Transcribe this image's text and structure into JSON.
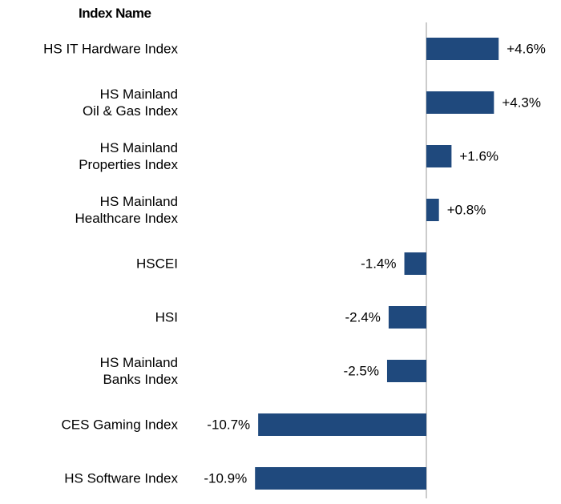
{
  "chart_data": {
    "type": "bar",
    "orientation": "horizontal",
    "y_label": "Index Name",
    "categories": [
      "HS IT Hardware Index",
      "HS Mainland\nOil & Gas Index",
      "HS Mainland\nProperties Index",
      "HS Mainland\nHealthcare Index",
      "HSCEI",
      "HSI",
      "HS Mainland\nBanks Index",
      "CES Gaming Index",
      "HS Software Index"
    ],
    "values": [
      4.6,
      4.3,
      1.6,
      0.8,
      -1.4,
      -2.4,
      -2.5,
      -10.7,
      -10.9
    ],
    "value_labels": [
      "+4.6%",
      "+4.3%",
      "+1.6%",
      "+0.8%",
      "-1.4%",
      "-2.4%",
      "-2.5%",
      "-10.7%",
      "-10.9%"
    ],
    "color": "#1f497d"
  }
}
